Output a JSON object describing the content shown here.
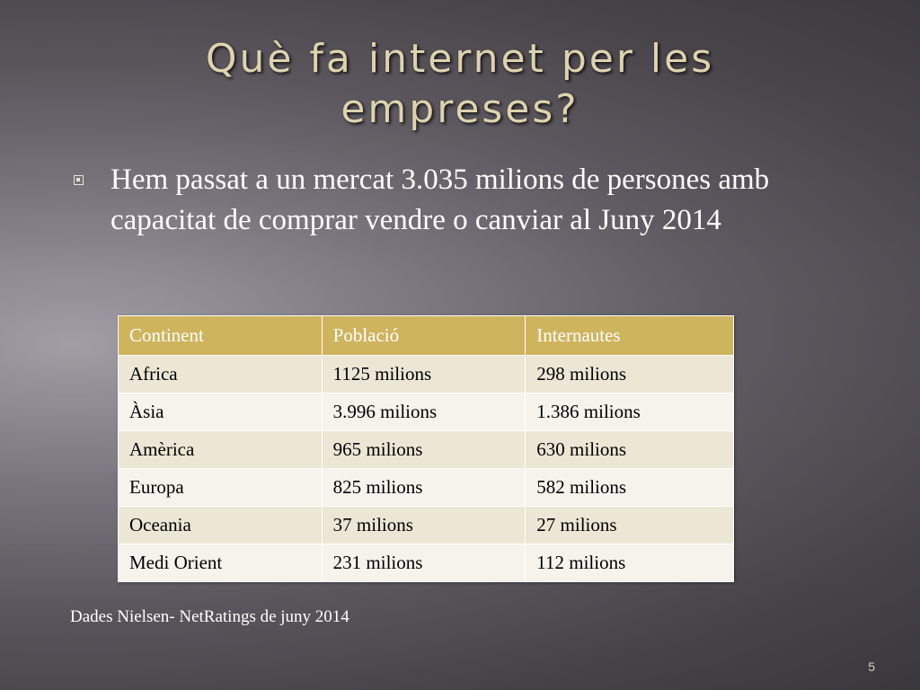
{
  "slide": {
    "title_line1": "Què fa internet per les",
    "title_line2": "empreses?",
    "bullet": "Hem passat a un mercat 3.035 milions de persones amb capacitat de comprar vendre o canviar al Juny 2014",
    "bullet_icon": "square-bullet-icon",
    "source": "Dades Nielsen- NetRatings de juny 2014",
    "page_number": "5",
    "colors": {
      "header_bg": "#cfb45e",
      "title": "#ddd3ae",
      "row_odd": "#ece6d5",
      "row_even": "#f6f3ec"
    }
  },
  "table": {
    "headers": [
      "Continent",
      "Població",
      "Internautes"
    ],
    "rows": [
      [
        "Africa",
        "1125 milions",
        "298 milions"
      ],
      [
        "Àsia",
        "3.996 milions",
        "1.386 milions"
      ],
      [
        "Amèrica",
        "965 milions",
        "630 milions"
      ],
      [
        "Europa",
        "825 milions",
        "582 milions"
      ],
      [
        "Oceania",
        "37 milions",
        "27 milions"
      ],
      [
        "Medi Orient",
        "231 milions",
        "112 milions"
      ]
    ]
  }
}
